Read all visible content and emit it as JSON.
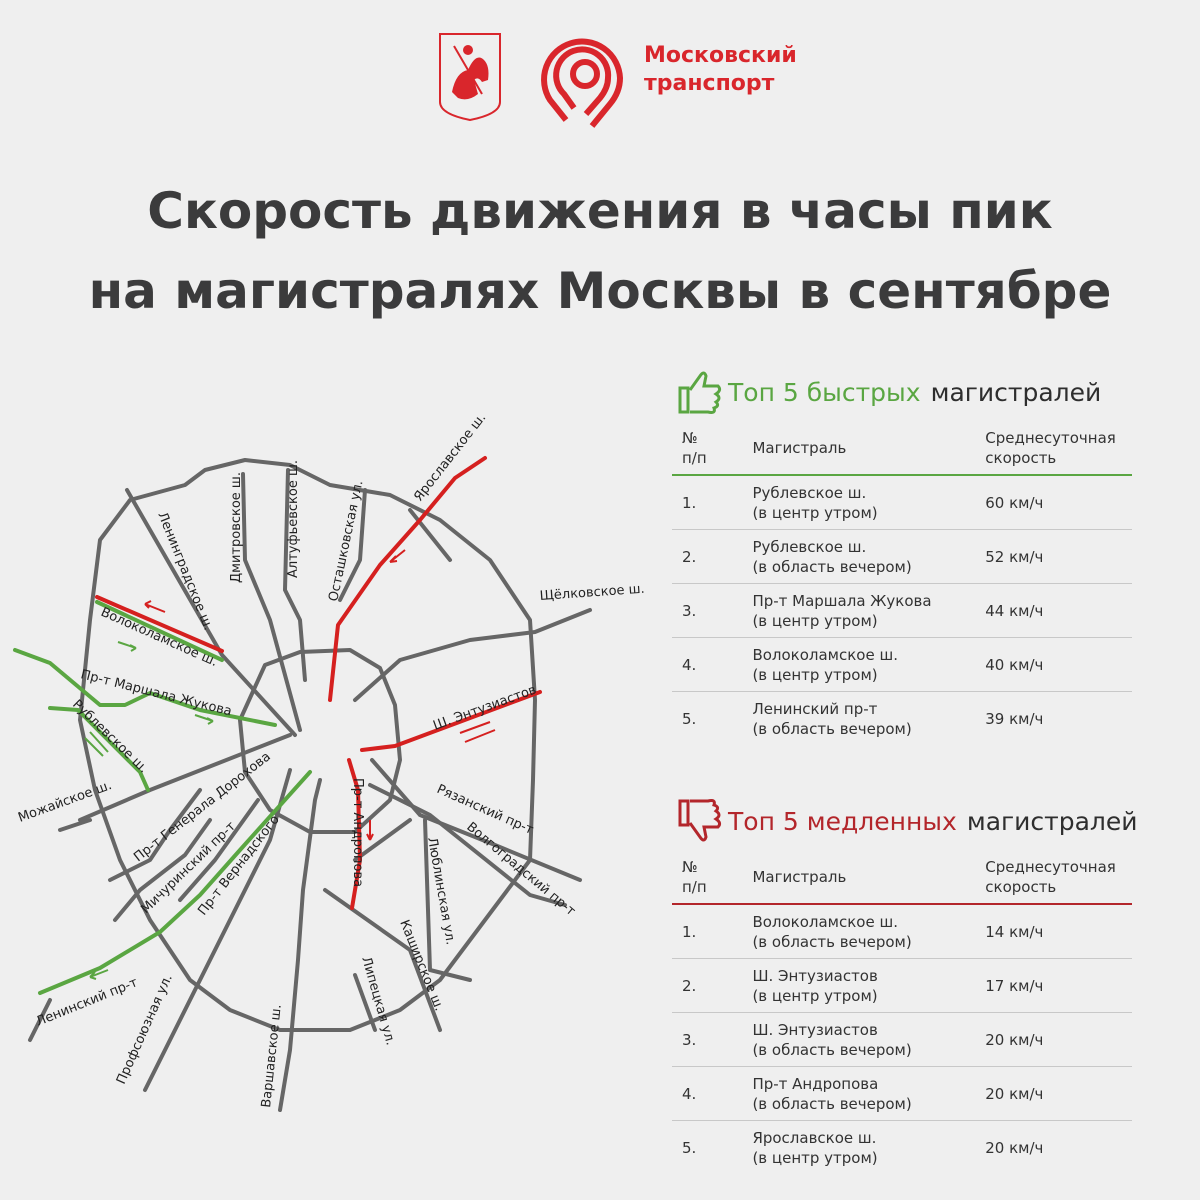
{
  "header": {
    "coat_of_arms_icon": "moscow-coat-of-arms",
    "logo_icon": "moscow-transport-logo",
    "brand_line1": "Московский",
    "brand_line2": "транспорт",
    "brand_color": "#d9262c"
  },
  "title": {
    "line1": "Скорость движения в часы пик",
    "line2": "на магистралях Москвы в сентябре"
  },
  "map": {
    "fast_color": "#5aa642",
    "slow_color": "#d5201f",
    "road_color": "#666666",
    "labels": {
      "leningradskoe": "Ленинградское ш.",
      "dmitrovskoe": "Дмитровское ш.",
      "altufievskoe": "Алтуфьевское ш.",
      "ostashkovskaya": "Осташковская ул.",
      "yaroslavskoe": "Ярославское ш.",
      "schelkovskoe": "Щёлковское ш.",
      "volokolamskoe": "Волоколамское ш.",
      "zhukova": "Пр-т Маршала Жукова",
      "rublevskoe": "Рублевское ш.",
      "entuziastov": "Ш. Энтузиастов",
      "mozhayskoe": "Можайское ш.",
      "dorokhova": "Пр-т Генерала Дорохова",
      "michurinsky": "Мичуринский пр-т",
      "vernadskogo": "Пр-т Вернадского",
      "andropova": "Пр-т Андропова",
      "ryazansky": "Рязанский пр-т",
      "volgogradsky": "Волгоградский пр-т",
      "lyublinskaya": "Люблинская ул.",
      "leninsky": "Ленинский пр-т",
      "kashirskoe": "Каширское ш.",
      "lipetskaya": "Липецкая ул.",
      "profsoyuznaya": "Профсоюзная ул.",
      "varshavskoe": "Варшавское ш."
    }
  },
  "fast": {
    "icon": "thumbs-up-icon",
    "title_colored": "Топ 5 быстрых",
    "title_rest": "магистралей",
    "color": "#5aa642",
    "headers": {
      "num_line1": "№",
      "num_line2": "п/п",
      "road": "Магистраль",
      "speed_line1": "Среднесуточная",
      "speed_line2": "скорость"
    },
    "rows": [
      {
        "num": "1.",
        "road": "Рублевское ш.",
        "note": "(в центр утром)",
        "speed": "60 км/ч"
      },
      {
        "num": "2.",
        "road": "Рублевское ш.",
        "note": "(в область вечером)",
        "speed": "52 км/ч"
      },
      {
        "num": "3.",
        "road": "Пр-т Маршала Жукова",
        "note": "(в центр утром)",
        "speed": "44 км/ч"
      },
      {
        "num": "4.",
        "road": "Волоколамское ш.",
        "note": "(в центр утром)",
        "speed": "40 км/ч"
      },
      {
        "num": "5.",
        "road": "Ленинский пр-т",
        "note": "(в область вечером)",
        "speed": "39 км/ч"
      }
    ]
  },
  "slow": {
    "icon": "thumbs-down-icon",
    "title_colored": "Топ 5 медленных",
    "title_rest": "магистралей",
    "color": "#b3262b",
    "headers": {
      "num_line1": "№",
      "num_line2": "п/п",
      "road": "Магистраль",
      "speed_line1": "Среднесуточная",
      "speed_line2": "скорость"
    },
    "rows": [
      {
        "num": "1.",
        "road": "Волоколамское ш.",
        "note": "(в область вечером)",
        "speed": "14 км/ч"
      },
      {
        "num": "2.",
        "road": "Ш. Энтузиастов",
        "note": "(в центр утром)",
        "speed": "17 км/ч"
      },
      {
        "num": "3.",
        "road": "Ш. Энтузиастов",
        "note": "(в область вечером)",
        "speed": "20 км/ч"
      },
      {
        "num": "4.",
        "road": "Пр-т Андропова",
        "note": "(в область вечером)",
        "speed": "20 км/ч"
      },
      {
        "num": "5.",
        "road": "Ярославское ш.",
        "note": "(в центр утром)",
        "speed": "20 км/ч"
      }
    ]
  }
}
